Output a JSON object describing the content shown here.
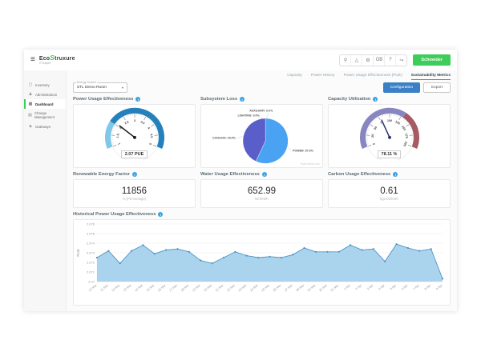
{
  "header": {
    "brand_eco": "Eco",
    "brand_s": "S",
    "brand_rest": "truxure",
    "brand_sub": "IT Expert",
    "top_icons": [
      {
        "name": "search",
        "glyph": "⚲"
      },
      {
        "name": "alarms",
        "glyph": "△"
      },
      {
        "name": "settings",
        "glyph": "⚙"
      },
      {
        "name": "language",
        "glyph": "GB"
      },
      {
        "name": "help",
        "glyph": "?"
      },
      {
        "name": "logout",
        "glyph": "↪"
      }
    ],
    "brand_button": "Schneider"
  },
  "sidebar": {
    "items": [
      {
        "id": "inventory",
        "label": "Inventory",
        "glyph": "▢",
        "active": false
      },
      {
        "id": "administration",
        "label": "Administration",
        "glyph": "♟",
        "active": false
      },
      {
        "id": "dashboard",
        "label": "Dashboard",
        "glyph": "▦",
        "active": true
      },
      {
        "id": "change-management",
        "label": "Change Management",
        "glyph": "▤",
        "active": false
      },
      {
        "id": "gateways",
        "label": "Gateways",
        "glyph": "◈",
        "active": false
      }
    ]
  },
  "toolbar": {
    "tabs": [
      {
        "label": "Capacity",
        "active": false
      },
      {
        "label": "Power History",
        "active": false
      },
      {
        "label": "Power Usage Effectiveness (PUE)",
        "active": false
      },
      {
        "label": "Sustainability Metrics",
        "active": true
      }
    ],
    "configuration_label": "Configuration",
    "export_label": "Export",
    "selector_label": "Energy Source",
    "selector_value": "STL Demo Room",
    "caret": "▾"
  },
  "chart_data": {
    "pue_gauge": {
      "type": "gauge",
      "title": "Power Usage Effectiveness",
      "min": 1,
      "max": 5,
      "tick": 0.5,
      "minor": 0.1,
      "value": 2.07,
      "value_label": "2.07 PUE",
      "needle_color": "#1a1a1a",
      "bands": [
        {
          "from": 1,
          "to": 2,
          "color": "#7ec8ea"
        },
        {
          "from": 2,
          "to": 5,
          "color": "#2581bb"
        }
      ]
    },
    "subsystem_loss": {
      "type": "pie",
      "title": "Subsystem Loss",
      "slices": [
        {
          "name": "POWER",
          "pct": 57.0,
          "color": "#4aa2f2"
        },
        {
          "name": "COOLING",
          "pct": 43.0,
          "color": "#5a5ec9"
        },
        {
          "name": "LIGHTING",
          "pct": 0.0,
          "color": "#90a4ae"
        },
        {
          "name": "AUXILIARY",
          "pct": 0.0,
          "color": "#90a4ae"
        }
      ],
      "labels": [
        {
          "text": "POWER: 57.0%",
          "x": 136,
          "y": 68,
          "anchor": "start",
          "line": [
            128,
            60,
            133,
            66
          ]
        },
        {
          "text": "COOLING: 43.0%",
          "x": 50,
          "y": 49,
          "anchor": "end",
          "line": [
            62,
            45,
            52,
            48
          ]
        },
        {
          "text": "LIGHTING: 0.0%",
          "x": 86,
          "y": 15,
          "anchor": "end",
          "line": [
            93,
            19,
            84,
            16
          ]
        },
        {
          "text": "AUXILIARY: 0.0%",
          "x": 106,
          "y": 8,
          "anchor": "end",
          "line": [
            96,
            18,
            100,
            10
          ]
        }
      ],
      "credit": "Highcharts.com"
    },
    "capacity_gauge": {
      "type": "gauge",
      "title": "Capacity Utilization",
      "min": 0,
      "max": 200,
      "tick": 25,
      "minor": 5,
      "value": 78.11,
      "value_label": "78.11 %",
      "needle_color": "#24356e",
      "bands": [
        {
          "from": 0,
          "to": 130,
          "color": "#8886c1"
        },
        {
          "from": 130,
          "to": 200,
          "color": "#a65a63"
        }
      ]
    },
    "stats": [
      {
        "title": "Renewable Energy Factor",
        "value": "11856",
        "unit": "% (Percentage)"
      },
      {
        "title": "Water Usage Effectiveness",
        "value": "652.99",
        "unit": "liter/kWh"
      },
      {
        "title": "Carbon Usage Effectiveness",
        "value": "0.61",
        "unit": "kgCO2/kWh"
      }
    ],
    "historical": {
      "type": "area",
      "title": "Historical Power Usage Effectiveness",
      "ylabel": "PUE",
      "ymin": 2.07,
      "ymax": 2.076,
      "yticks": [
        2.07,
        2.071,
        2.072,
        2.073,
        2.074,
        2.075,
        2.076
      ],
      "grid": true,
      "line_color": "#4f93c4",
      "fill_color": "#aad4ee",
      "categories": [
        "10 Mar",
        "11 Mar",
        "12 Mar",
        "13 Mar",
        "14 Mar",
        "15 Mar",
        "16 Mar",
        "17 Mar",
        "18 Mar",
        "19 Mar",
        "20 Mar",
        "21 Mar",
        "22 Mar",
        "23 Mar",
        "24 Mar",
        "25 Mar",
        "26 Mar",
        "27 Mar",
        "28 Mar",
        "29 Mar",
        "30 Mar",
        "31 Mar",
        "1 Apr",
        "2 Apr",
        "3 Apr",
        "4 Apr",
        "5 Apr",
        "6 Apr",
        "7 Apr",
        "8 Apr",
        "9 Apr"
      ],
      "values": [
        2.0725,
        2.0732,
        2.0719,
        2.0732,
        2.0738,
        2.0729,
        2.0733,
        2.0734,
        2.0731,
        2.0722,
        2.0719,
        2.0725,
        2.0731,
        2.0727,
        2.0725,
        2.0726,
        2.0725,
        2.0728,
        2.0735,
        2.0731,
        2.0731,
        2.0731,
        2.0738,
        2.0733,
        2.0734,
        2.0721,
        2.0739,
        2.0735,
        2.0732,
        2.0734,
        2.0703
      ]
    }
  }
}
